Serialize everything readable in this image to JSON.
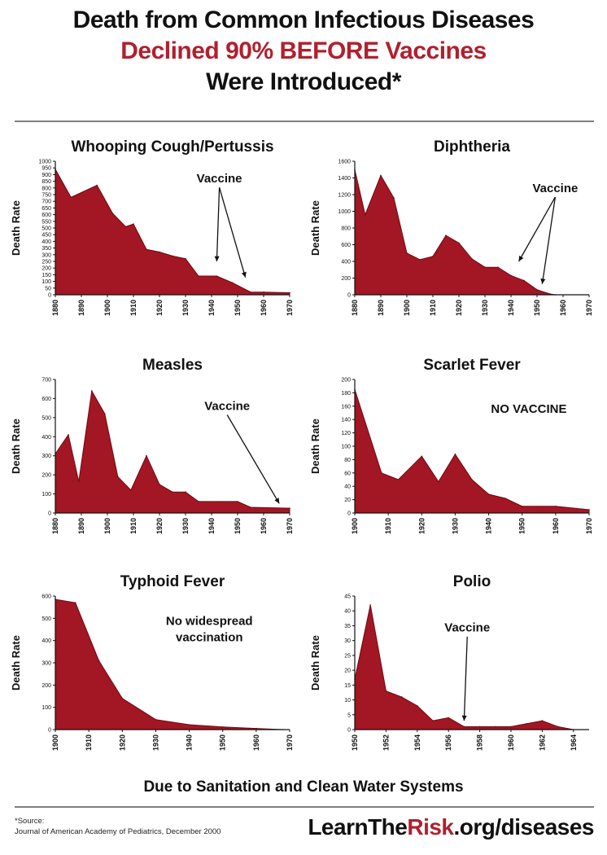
{
  "header": {
    "line1": "Death from Common Infectious Diseases",
    "line2": "Declined 90% BEFORE Vaccines",
    "line3": "Were Introduced*"
  },
  "footer": {
    "cause": "Due to Sanitation and Clean Water Systems",
    "source_label": "*Source:",
    "source_text": "Journal of American Academy of Pediatrics, December 2000",
    "site_prefix": "LearnThe",
    "site_highlight": "Risk",
    "site_suffix": ".org/diseases"
  },
  "colors": {
    "fill": "#a31623",
    "accent_text": "#b0202e"
  },
  "chart_data": [
    {
      "id": "pertussis",
      "type": "area",
      "title": "Whooping Cough/Pertussis",
      "ylabel": "Death Rate",
      "xlim": [
        1880,
        1970
      ],
      "ylim": [
        0,
        1000
      ],
      "yticks": [
        0,
        50,
        100,
        150,
        200,
        250,
        300,
        350,
        400,
        450,
        500,
        550,
        600,
        650,
        700,
        750,
        800,
        850,
        900,
        950,
        1000
      ],
      "xticks": [
        1880,
        1890,
        1900,
        1910,
        1920,
        1930,
        1940,
        1950,
        1960,
        1970
      ],
      "x": [
        1880,
        1886,
        1896,
        1902,
        1907,
        1910,
        1915,
        1920,
        1925,
        1930,
        1935,
        1942,
        1948,
        1955,
        1960,
        1970
      ],
      "y": [
        940,
        730,
        820,
        610,
        510,
        530,
        340,
        320,
        290,
        270,
        140,
        140,
        90,
        20,
        20,
        15
      ],
      "annotation": {
        "text": "Vaccine",
        "tx": 1943,
        "ty": 840,
        "arrows": [
          [
            1942,
            250
          ],
          [
            1953,
            130
          ]
        ]
      }
    },
    {
      "id": "diphtheria",
      "type": "area",
      "title": "Diphtheria",
      "ylabel": "Death Rate",
      "xlim": [
        1880,
        1970
      ],
      "ylim": [
        0,
        1600
      ],
      "yticks": [
        0,
        200,
        400,
        600,
        800,
        1000,
        1200,
        1400,
        1600
      ],
      "xticks": [
        1880,
        1890,
        1900,
        1910,
        1920,
        1930,
        1940,
        1950,
        1960,
        1970
      ],
      "x": [
        1880,
        1884,
        1890,
        1895,
        1900,
        1905,
        1910,
        1915,
        1920,
        1925,
        1930,
        1935,
        1940,
        1945,
        1950,
        1955,
        1957
      ],
      "y": [
        1500,
        960,
        1430,
        1160,
        500,
        420,
        460,
        710,
        620,
        430,
        330,
        330,
        230,
        170,
        60,
        10,
        0
      ],
      "annotation": {
        "text": "Vaccine",
        "tx": 1957,
        "ty": 1230,
        "arrows": [
          [
            1943,
            400
          ],
          [
            1952,
            130
          ]
        ]
      }
    },
    {
      "id": "measles",
      "type": "area",
      "title": "Measles",
      "ylabel": "Death Rate",
      "xlim": [
        1880,
        1970
      ],
      "ylim": [
        0,
        700
      ],
      "yticks": [
        0,
        100,
        200,
        300,
        400,
        500,
        600,
        700
      ],
      "xticks": [
        1880,
        1890,
        1900,
        1910,
        1920,
        1930,
        1940,
        1950,
        1960,
        1970
      ],
      "x": [
        1880,
        1885,
        1889,
        1894,
        1899,
        1904,
        1909,
        1915,
        1920,
        1925,
        1930,
        1935,
        1950,
        1955,
        1970
      ],
      "y": [
        310,
        410,
        165,
        640,
        520,
        190,
        120,
        300,
        150,
        110,
        110,
        60,
        60,
        30,
        25
      ],
      "annotation": {
        "text": "Vaccine",
        "tx": 1946,
        "ty": 540,
        "arrows": [
          [
            1966,
            50
          ]
        ]
      }
    },
    {
      "id": "scarlet",
      "type": "area",
      "title": "Scarlet Fever",
      "ylabel": "Death Rate",
      "xlim": [
        1900,
        1970
      ],
      "ylim": [
        0,
        200
      ],
      "yticks": [
        0,
        20,
        40,
        60,
        80,
        100,
        120,
        140,
        160,
        180,
        200
      ],
      "xticks": [
        1900,
        1910,
        1920,
        1930,
        1940,
        1950,
        1960,
        1970
      ],
      "x": [
        1900,
        1908,
        1913,
        1920,
        1925,
        1930,
        1935,
        1940,
        1945,
        1950,
        1960,
        1970
      ],
      "y": [
        185,
        60,
        50,
        85,
        47,
        88,
        50,
        28,
        22,
        10,
        10,
        5
      ],
      "annotation": {
        "text": "NO VACCINE",
        "tx": 1952,
        "ty": 150,
        "arrows": []
      }
    },
    {
      "id": "typhoid",
      "type": "area",
      "title": "Typhoid Fever",
      "ylabel": "Death Rate",
      "xlim": [
        1900,
        1970
      ],
      "ylim": [
        0,
        600
      ],
      "yticks": [
        0,
        100,
        200,
        300,
        400,
        500,
        600
      ],
      "xticks": [
        1900,
        1910,
        1920,
        1930,
        1940,
        1950,
        1960,
        1970
      ],
      "x": [
        1900,
        1906,
        1913,
        1920,
        1930,
        1940,
        1950,
        1960,
        1968
      ],
      "y": [
        585,
        570,
        310,
        140,
        45,
        22,
        12,
        5,
        0
      ],
      "annotation": {
        "text": "No widespread\nvaccination",
        "tx": 1946,
        "ty": 470,
        "arrows": []
      }
    },
    {
      "id": "polio",
      "type": "area",
      "title": "Polio",
      "ylabel": "Death Rate",
      "xlim": [
        1950,
        1965
      ],
      "ylim": [
        0,
        45
      ],
      "yticks": [
        0,
        5,
        10,
        15,
        20,
        25,
        30,
        35,
        40,
        45
      ],
      "xticks": [
        1950,
        1952,
        1954,
        1956,
        1958,
        1960,
        1962,
        1964
      ],
      "x": [
        1950,
        1951,
        1952,
        1953,
        1954,
        1955,
        1956,
        1957,
        1958,
        1959,
        1960,
        1961,
        1962,
        1963,
        1964
      ],
      "y": [
        17,
        42,
        13,
        11,
        8,
        3,
        4,
        1,
        1,
        1,
        1,
        2,
        3,
        1,
        0
      ],
      "annotation": {
        "text": "Vaccine",
        "tx": 1957.2,
        "ty": 33,
        "arrows": [
          [
            1957,
            3
          ]
        ]
      }
    }
  ]
}
